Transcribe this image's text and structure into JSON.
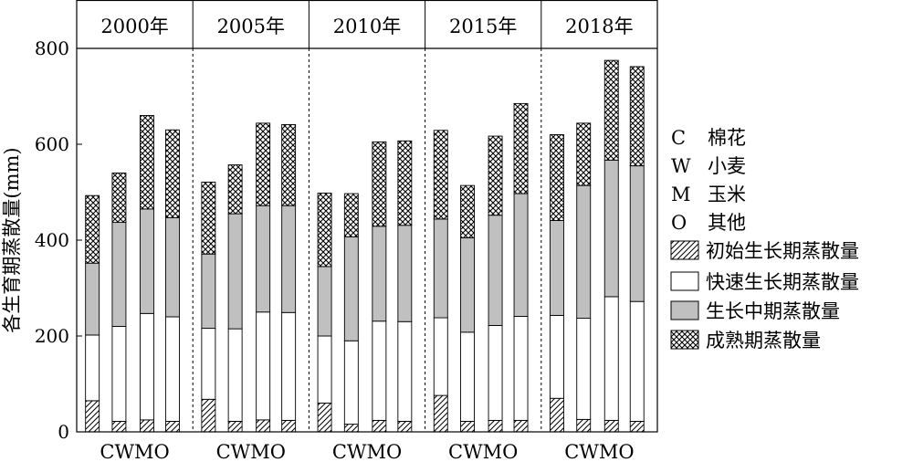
{
  "chart_data": {
    "type": "bar",
    "stacked": true,
    "ylabel": "各生育期蒸散量(mm)",
    "ylim": [
      0,
      800
    ],
    "yticks": [
      0,
      200,
      400,
      600,
      800
    ],
    "panels": [
      {
        "label": "2000年",
        "categories": [
          "C",
          "W",
          "M",
          "O"
        ]
      },
      {
        "label": "2005年",
        "categories": [
          "C",
          "W",
          "M",
          "O"
        ]
      },
      {
        "label": "2010年",
        "categories": [
          "C",
          "W",
          "M",
          "O"
        ]
      },
      {
        "label": "2015年",
        "categories": [
          "C",
          "W",
          "M",
          "O"
        ]
      },
      {
        "label": "2018年",
        "categories": [
          "C",
          "W",
          "M",
          "O"
        ]
      }
    ],
    "panel_xlabel": "CWMO",
    "series": [
      {
        "name": "初始生长期蒸散量",
        "pattern": "hatch",
        "values": [
          [
            65,
            22,
            25,
            22
          ],
          [
            68,
            22,
            25,
            24
          ],
          [
            60,
            16,
            24,
            22
          ],
          [
            76,
            22,
            24,
            24
          ],
          [
            70,
            26,
            24,
            22
          ]
        ]
      },
      {
        "name": "快速生长期蒸散量",
        "pattern": "white",
        "values": [
          [
            137,
            198,
            222,
            218
          ],
          [
            148,
            193,
            225,
            225
          ],
          [
            140,
            174,
            207,
            208
          ],
          [
            162,
            186,
            198,
            217
          ],
          [
            173,
            211,
            258,
            250
          ]
        ]
      },
      {
        "name": "生长中期蒸散量",
        "pattern": "gray",
        "values": [
          [
            150,
            217,
            218,
            207
          ],
          [
            155,
            240,
            222,
            223
          ],
          [
            145,
            217,
            198,
            201
          ],
          [
            206,
            197,
            230,
            256
          ],
          [
            198,
            277,
            285,
            283
          ]
        ]
      },
      {
        "name": "成熟期蒸散量",
        "pattern": "crosshatch",
        "values": [
          [
            141,
            103,
            195,
            183
          ],
          [
            150,
            102,
            172,
            169
          ],
          [
            153,
            90,
            176,
            176
          ],
          [
            185,
            109,
            165,
            188
          ],
          [
            179,
            130,
            208,
            207
          ]
        ]
      }
    ],
    "totals": [
      [
        493,
        540,
        660,
        630
      ],
      [
        521,
        557,
        644,
        641
      ],
      [
        498,
        497,
        605,
        607
      ],
      [
        629,
        514,
        617,
        685
      ],
      [
        620,
        644,
        775,
        762
      ]
    ],
    "legend": {
      "position": "right",
      "crop_codes": [
        {
          "code": "C",
          "name": "棉花"
        },
        {
          "code": "W",
          "name": "小麦"
        },
        {
          "code": "M",
          "name": "玉米"
        },
        {
          "code": "O",
          "name": "其他"
        }
      ]
    }
  }
}
